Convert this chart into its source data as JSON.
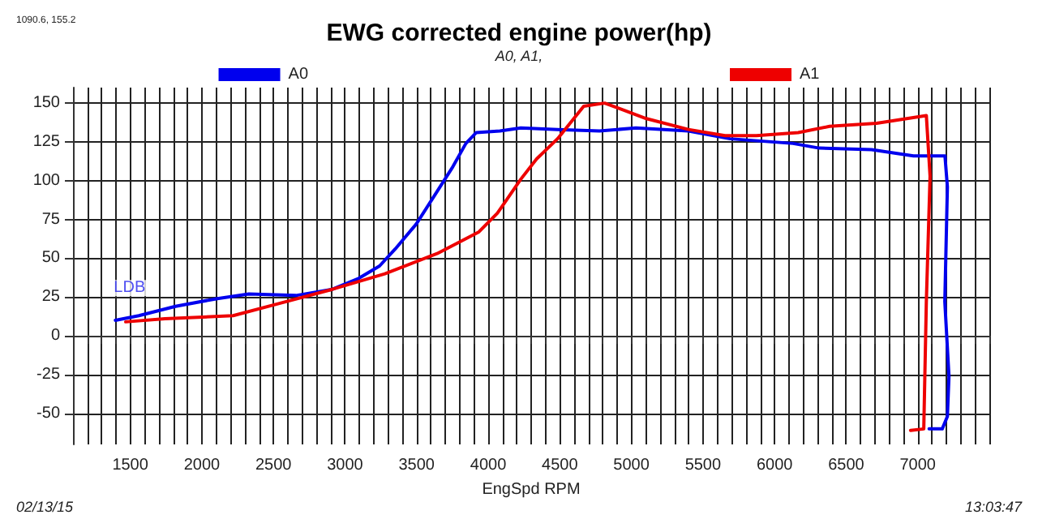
{
  "chart_data": {
    "type": "line",
    "title": "EWG corrected engine power(hp)",
    "subtitle": "A0, A1,",
    "xlabel": "EngSpd RPM",
    "annotations": [
      "1090.6, 155.2",
      "02/13/15",
      "13:03:47",
      {
        "text": "LDB",
        "x": 1450,
        "y": 14
      }
    ],
    "xlim": [
      1100,
      7500
    ],
    "ylim": [
      -70,
      160
    ],
    "xticks": [
      {
        "value": 1100,
        "label": null
      },
      {
        "value": 1200,
        "label": null
      },
      {
        "value": 1300,
        "label": null
      },
      {
        "value": 1400,
        "label": null
      },
      1500,
      {
        "value": 1600,
        "label": null
      },
      {
        "value": 1700,
        "label": null
      },
      {
        "value": 1800,
        "label": null
      },
      {
        "value": 1900,
        "label": null
      },
      2000,
      {
        "value": 2100,
        "label": null
      },
      {
        "value": 2200,
        "label": null
      },
      {
        "value": 2300,
        "label": null
      },
      {
        "value": 2400,
        "label": null
      },
      2500,
      {
        "value": 2600,
        "label": null
      },
      {
        "value": 2700,
        "label": null
      },
      {
        "value": 2800,
        "label": null
      },
      {
        "value": 2900,
        "label": null
      },
      3000,
      {
        "value": 3100,
        "label": null
      },
      {
        "value": 3200,
        "label": null
      },
      {
        "value": 3300,
        "label": null
      },
      {
        "value": 3400,
        "label": null
      },
      3500,
      {
        "value": 3600,
        "label": null
      },
      {
        "value": 3700,
        "label": null
      },
      {
        "value": 3800,
        "label": null
      },
      {
        "value": 3900,
        "label": null
      },
      4000,
      {
        "value": 4100,
        "label": null
      },
      {
        "value": 4200,
        "label": null
      },
      {
        "value": 4300,
        "label": null
      },
      {
        "value": 4400,
        "label": null
      },
      4500,
      {
        "value": 4600,
        "label": null
      },
      {
        "value": 4700,
        "label": null
      },
      {
        "value": 4800,
        "label": null
      },
      {
        "value": 4900,
        "label": null
      },
      5000,
      {
        "value": 5100,
        "label": null
      },
      {
        "value": 5200,
        "label": null
      },
      {
        "value": 5300,
        "label": null
      },
      {
        "value": 5400,
        "label": null
      },
      5500,
      {
        "value": 5600,
        "label": null
      },
      {
        "value": 5700,
        "label": null
      },
      {
        "value": 5800,
        "label": null
      },
      {
        "value": 5900,
        "label": null
      },
      6000,
      {
        "value": 6100,
        "label": null
      },
      {
        "value": 6200,
        "label": null
      },
      {
        "value": 6300,
        "label": null
      },
      {
        "value": 6400,
        "label": null
      },
      6500,
      {
        "value": 6600,
        "label": null
      },
      {
        "value": 6700,
        "label": null
      },
      {
        "value": 6800,
        "label": null
      },
      {
        "value": 6900,
        "label": null
      },
      7000,
      {
        "value": 7100,
        "label": null
      },
      {
        "value": 7200,
        "label": null
      },
      {
        "value": 7300,
        "label": null
      },
      {
        "value": 7400,
        "label": null
      },
      {
        "value": 7500,
        "label": null
      }
    ],
    "yticks": [
      -50,
      -25,
      0,
      25,
      50,
      75,
      100,
      125,
      150
    ],
    "grid": true,
    "legend": "top",
    "marker": "none",
    "line_style": "solid",
    "series": [
      {
        "name": "A0",
        "color": "#0000ee",
        "x": [
          1396,
          1560,
          1816,
          2108,
          2328,
          2657,
          2912,
          3095,
          3241,
          3351,
          3497,
          3643,
          3753,
          3844,
          3917,
          4082,
          4228,
          4484,
          4777,
          5032,
          5398,
          5690,
          6129,
          6311,
          6677,
          6970,
          7190,
          7207,
          7189,
          7218,
          7207,
          7171,
          7079
        ],
        "values": [
          10,
          13,
          19,
          24,
          27,
          26,
          30,
          37,
          45,
          56,
          72,
          93,
          109,
          124,
          131,
          132,
          134,
          133,
          132,
          134,
          132,
          127,
          124,
          121,
          120,
          116,
          116,
          96,
          22,
          -26,
          -52,
          -60,
          -60
        ]
      },
      {
        "name": "A1",
        "color": "#ee0000",
        "x": [
          1468,
          1742,
          2218,
          2547,
          2912,
          3278,
          3643,
          3935,
          4064,
          4228,
          4338,
          4484,
          4667,
          4813,
          5105,
          5398,
          5654,
          5873,
          6165,
          6384,
          6713,
          7060,
          7086,
          7060,
          7042,
          6950
        ],
        "values": [
          9,
          11,
          13,
          21,
          30,
          40,
          53,
          67,
          79,
          101,
          114,
          127,
          148,
          150,
          140,
          133,
          129,
          129,
          131,
          135,
          137,
          142,
          103,
          22,
          -60,
          -61
        ]
      }
    ]
  }
}
